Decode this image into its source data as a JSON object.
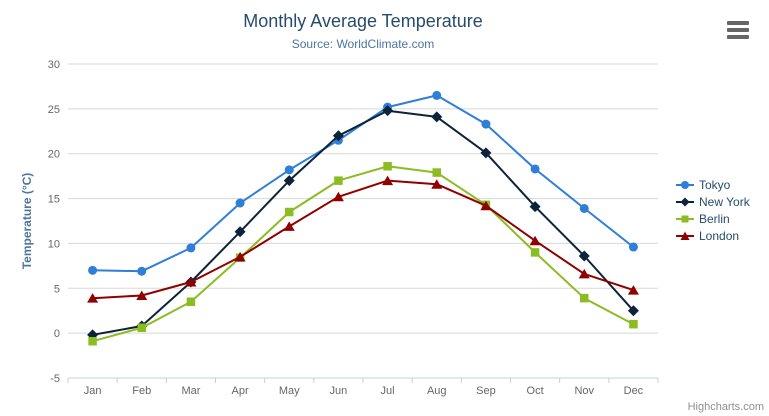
{
  "chart_data": {
    "type": "line",
    "title": "Monthly Average Temperature",
    "subtitle": "Source: WorldClimate.com",
    "xlabel": "",
    "ylabel": "Temperature (°C)",
    "ylim": [
      -5,
      30
    ],
    "y_tick_interval": 5,
    "grid": true,
    "legend_position": "right",
    "categories": [
      "Jan",
      "Feb",
      "Mar",
      "Apr",
      "May",
      "Jun",
      "Jul",
      "Aug",
      "Sep",
      "Oct",
      "Nov",
      "Dec"
    ],
    "series": [
      {
        "name": "Tokyo",
        "color": "#2f7ed8",
        "marker": "circle",
        "values": [
          7.0,
          6.9,
          9.5,
          14.5,
          18.2,
          21.5,
          25.2,
          26.5,
          23.3,
          18.3,
          13.9,
          9.6
        ]
      },
      {
        "name": "New York",
        "color": "#0d233a",
        "marker": "diamond",
        "values": [
          -0.2,
          0.8,
          5.7,
          11.3,
          17.0,
          22.0,
          24.8,
          24.1,
          20.1,
          14.1,
          8.6,
          2.5
        ]
      },
      {
        "name": "Berlin",
        "color": "#8bbc21",
        "marker": "square",
        "values": [
          -0.9,
          0.6,
          3.5,
          8.4,
          13.5,
          17.0,
          18.6,
          17.9,
          14.3,
          9.0,
          3.9,
          1.0
        ]
      },
      {
        "name": "London",
        "color": "#910000",
        "marker": "triangle",
        "values": [
          3.9,
          4.2,
          5.7,
          8.5,
          11.9,
          15.2,
          17.0,
          16.6,
          14.2,
          10.3,
          6.6,
          4.8
        ]
      }
    ]
  },
  "credits": "Highcharts.com",
  "colors": {
    "title": "#274b6d",
    "subtitle": "#4d759e",
    "axis_title": "#4d759e",
    "axis_label": "#666666",
    "grid": "#d8d8d8",
    "x_axis_line": "#c0d0e0",
    "legend_text": "#274b6d",
    "credits": "#909090",
    "menu_icon": "#666666"
  }
}
